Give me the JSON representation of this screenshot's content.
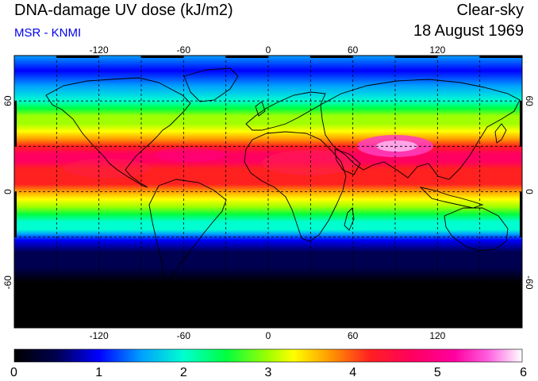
{
  "header": {
    "title": "DNA-damage UV dose (kJ/m2)",
    "source": "MSR - KNMI",
    "condition": "Clear-sky",
    "date": "18 August 1969"
  },
  "colors": {
    "source_text": "#0000ee",
    "frame": "#000000"
  },
  "map": {
    "projection": "equirectangular",
    "lon_range": [
      -180,
      180
    ],
    "lat_range": [
      -90,
      90
    ],
    "lon_ticks": [
      -120,
      -60,
      0,
      60,
      120
    ],
    "lat_ticks": [
      60,
      0,
      -60
    ],
    "lon_tick_labels": [
      "-120",
      "-60",
      "0",
      "60",
      "120"
    ],
    "lat_tick_labels": [
      "60",
      "0",
      "-60"
    ],
    "gridlines": "dashed every 30 degrees"
  },
  "colorbar": {
    "range": [
      0,
      6
    ],
    "ticks": [
      0,
      1,
      2,
      3,
      4,
      5,
      6
    ],
    "tick_labels": [
      "0",
      "1",
      "2",
      "3",
      "4",
      "5",
      "6"
    ],
    "stops": [
      {
        "v": 0.0,
        "c": "#000000"
      },
      {
        "v": 0.5,
        "c": "#000050"
      },
      {
        "v": 1.0,
        "c": "#0000ff"
      },
      {
        "v": 1.5,
        "c": "#00a0ff"
      },
      {
        "v": 2.0,
        "c": "#00ffd0"
      },
      {
        "v": 2.5,
        "c": "#00ff40"
      },
      {
        "v": 3.0,
        "c": "#a0ff00"
      },
      {
        "v": 3.3,
        "c": "#ffff00"
      },
      {
        "v": 3.7,
        "c": "#ffa000"
      },
      {
        "v": 4.2,
        "c": "#ff2020"
      },
      {
        "v": 4.7,
        "c": "#ff0060"
      },
      {
        "v": 5.2,
        "c": "#ff00a0"
      },
      {
        "v": 5.6,
        "c": "#ff60e0"
      },
      {
        "v": 6.0,
        "c": "#ffffff"
      }
    ]
  }
}
